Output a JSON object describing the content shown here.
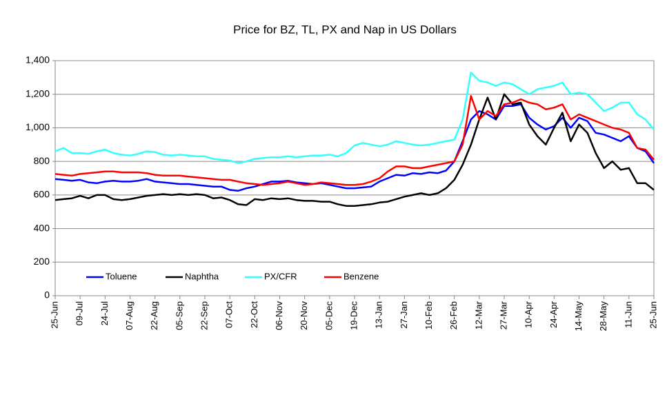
{
  "chart_data": {
    "type": "line",
    "title": "Price for BZ, TL, PX and Nap in US Dollars",
    "categories": [
      "25-Jun",
      null,
      null,
      "09-Jul",
      null,
      null,
      "24-Jul",
      null,
      null,
      "07-Aug",
      null,
      null,
      "22-Aug",
      null,
      null,
      "05-Sep",
      null,
      null,
      "22-Sep",
      null,
      null,
      "07-Oct",
      null,
      null,
      "22-Oct",
      null,
      null,
      "06-Nov",
      null,
      null,
      "20-Nov",
      null,
      null,
      "05-Dec",
      null,
      null,
      "19-Dec",
      null,
      null,
      "13-Jan",
      null,
      null,
      "27-Jan",
      null,
      null,
      "10-Feb",
      null,
      null,
      "26-Feb",
      null,
      null,
      "12-Mar",
      null,
      null,
      "27-Mar",
      null,
      null,
      "10-Apr",
      null,
      null,
      "24-Apr",
      null,
      null,
      "14-May",
      null,
      null,
      "28-May",
      null,
      null,
      "11-Jun",
      null,
      null,
      "25-Jun"
    ],
    "series": [
      {
        "name": "Toluene",
        "color": "#0000ff",
        "values": [
          695,
          690,
          685,
          690,
          675,
          670,
          680,
          685,
          680,
          680,
          685,
          695,
          680,
          675,
          670,
          665,
          665,
          660,
          655,
          650,
          650,
          630,
          625,
          640,
          650,
          665,
          680,
          680,
          685,
          675,
          670,
          665,
          670,
          660,
          650,
          640,
          640,
          645,
          650,
          680,
          700,
          720,
          715,
          730,
          725,
          735,
          730,
          745,
          800,
          920,
          1050,
          1100,
          1080,
          1050,
          1130,
          1130,
          1140,
          1060,
          1020,
          990,
          1010,
          1060,
          1000,
          1060,
          1040,
          970,
          960,
          940,
          920,
          950,
          880,
          860,
          790
        ]
      },
      {
        "name": "Naphtha",
        "color": "#000000",
        "values": [
          570,
          575,
          580,
          595,
          580,
          600,
          600,
          575,
          570,
          575,
          585,
          595,
          600,
          605,
          600,
          605,
          600,
          605,
          600,
          580,
          585,
          570,
          545,
          540,
          575,
          570,
          580,
          575,
          580,
          570,
          565,
          565,
          560,
          560,
          545,
          535,
          535,
          540,
          545,
          555,
          560,
          575,
          590,
          600,
          610,
          600,
          610,
          640,
          690,
          780,
          900,
          1050,
          1180,
          1050,
          1200,
          1140,
          1150,
          1020,
          950,
          900,
          1000,
          1090,
          920,
          1020,
          970,
          850,
          760,
          800,
          750,
          760,
          670,
          670,
          630
        ]
      },
      {
        "name": "PX/CFR",
        "color": "#33ffff",
        "values": [
          860,
          880,
          850,
          850,
          845,
          860,
          870,
          850,
          840,
          835,
          845,
          860,
          855,
          840,
          835,
          840,
          835,
          830,
          830,
          815,
          810,
          805,
          790,
          800,
          815,
          820,
          825,
          825,
          830,
          825,
          830,
          835,
          835,
          840,
          830,
          850,
          895,
          910,
          900,
          890,
          900,
          920,
          910,
          900,
          895,
          900,
          910,
          920,
          930,
          1050,
          1330,
          1280,
          1270,
          1250,
          1270,
          1260,
          1230,
          1200,
          1230,
          1240,
          1250,
          1270,
          1200,
          1210,
          1200,
          1150,
          1100,
          1120,
          1150,
          1150,
          1080,
          1050,
          990
        ]
      },
      {
        "name": "Benzene",
        "color": "#ff0000",
        "values": [
          725,
          720,
          715,
          725,
          730,
          735,
          740,
          740,
          735,
          735,
          735,
          730,
          720,
          715,
          715,
          715,
          710,
          705,
          700,
          695,
          690,
          690,
          680,
          670,
          665,
          660,
          665,
          670,
          680,
          670,
          660,
          665,
          675,
          670,
          665,
          660,
          660,
          665,
          680,
          700,
          740,
          770,
          770,
          760,
          760,
          770,
          780,
          790,
          800,
          900,
          1190,
          1050,
          1100,
          1070,
          1140,
          1150,
          1170,
          1150,
          1140,
          1110,
          1120,
          1140,
          1050,
          1080,
          1060,
          1040,
          1020,
          1000,
          990,
          970,
          880,
          870,
          810
        ]
      }
    ],
    "ylim": [
      0,
      1400
    ],
    "yticks": [
      0,
      200,
      400,
      600,
      800,
      {
        "value": 1000,
        "label": "1,000"
      },
      {
        "value": 1200,
        "label": "1,200"
      },
      {
        "value": 1400,
        "label": "1,400"
      }
    ],
    "grid": true,
    "legend": "lower left"
  }
}
